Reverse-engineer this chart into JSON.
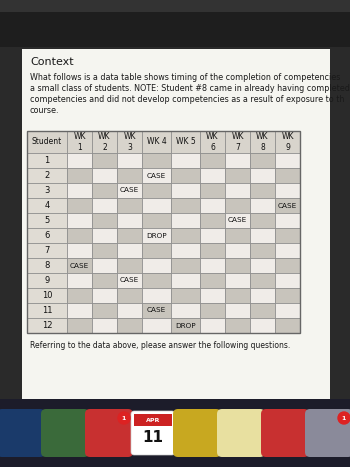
{
  "title": "Context",
  "intro_text_lines": [
    "What follows is a data table shows timing of the completion of competencies",
    "a small class of students. NOTE: Student #8 came in already having completed",
    "competencies and did not develop competencies as a result of exposure to th",
    "course."
  ],
  "footer_text": "Referring to the data above, please answer the following questions.",
  "col_headers": [
    "Student",
    "WK\n1",
    "WK\n2",
    "WK\n3",
    "WK 4",
    "WK 5",
    "WK\n6",
    "WK\n7",
    "WK\n8",
    "WK\n9"
  ],
  "rows": [
    {
      "student": "1",
      "cells": [
        "",
        "",
        "",
        "",
        "",
        "",
        "",
        "",
        ""
      ]
    },
    {
      "student": "2",
      "cells": [
        "",
        "",
        "",
        "CASE",
        "",
        "",
        "",
        "",
        ""
      ]
    },
    {
      "student": "3",
      "cells": [
        "",
        "",
        "CASE",
        "",
        "",
        "",
        "",
        "",
        ""
      ]
    },
    {
      "student": "4",
      "cells": [
        "",
        "",
        "",
        "",
        "",
        "",
        "",
        "",
        "CASE"
      ]
    },
    {
      "student": "5",
      "cells": [
        "",
        "",
        "",
        "",
        "",
        "",
        "CASE",
        "",
        ""
      ]
    },
    {
      "student": "6",
      "cells": [
        "",
        "",
        "",
        "DROP",
        "",
        "",
        "",
        "",
        ""
      ]
    },
    {
      "student": "7",
      "cells": [
        "",
        "",
        "",
        "",
        "",
        "",
        "",
        "",
        ""
      ]
    },
    {
      "student": "8",
      "cells": [
        "CASE",
        "",
        "",
        "",
        "",
        "",
        "",
        "",
        ""
      ]
    },
    {
      "student": "9",
      "cells": [
        "",
        "",
        "CASE",
        "",
        "",
        "",
        "",
        "",
        ""
      ]
    },
    {
      "student": "10",
      "cells": [
        "",
        "",
        "",
        "",
        "",
        "",
        "",
        "",
        ""
      ]
    },
    {
      "student": "11",
      "cells": [
        "",
        "",
        "",
        "CASE",
        "",
        "",
        "",
        "",
        ""
      ]
    },
    {
      "student": "12",
      "cells": [
        "",
        "",
        "",
        "",
        "DROP",
        "",
        "",
        "",
        ""
      ]
    }
  ],
  "device_bg": "#2a2a2a",
  "page_bg": "#f5f5f0",
  "table_border": "#888888",
  "cell_white": "#f0ece8",
  "cell_gray": "#c8c4bc",
  "header_bg": "#d8d4cc",
  "student_col_bg": "#e0dcd4",
  "text_dark": "#1a1a1a",
  "dock_bg": "#1a1a1a"
}
